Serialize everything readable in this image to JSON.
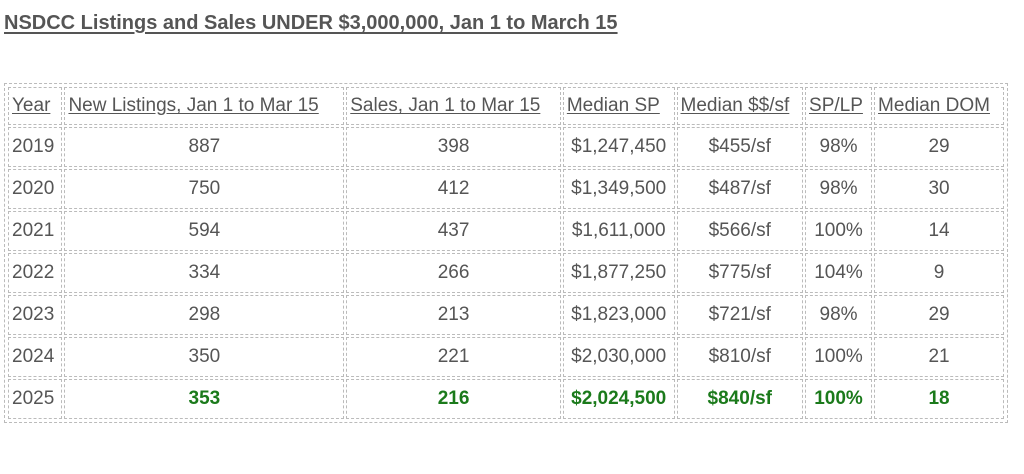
{
  "title": "NSDCC Listings and Sales UNDER $3,000,000, Jan 1 to March 15",
  "table": {
    "headers": [
      "Year",
      "New Listings, Jan 1 to Mar 15",
      "Sales, Jan 1 to Mar 15",
      "Median SP",
      "Median $$/sf",
      "SP/LP",
      "Median DOM"
    ],
    "rows": [
      [
        "2019",
        "887",
        "398",
        "$1,247,450",
        "$455/sf",
        "98%",
        "29"
      ],
      [
        "2020",
        "750",
        "412",
        "$1,349,500",
        "$487/sf",
        "98%",
        "30"
      ],
      [
        "2021",
        "594",
        "437",
        "$1,611,000",
        "$566/sf",
        "100%",
        "14"
      ],
      [
        "2022",
        "334",
        "266",
        "$1,877,250",
        "$775/sf",
        "104%",
        "9"
      ],
      [
        "2023",
        "298",
        "213",
        "$1,823,000",
        "$721/sf",
        "98%",
        "29"
      ],
      [
        "2024",
        "350",
        "221",
        "$2,030,000",
        "$810/sf",
        "100%",
        "21"
      ],
      [
        "2025",
        "353",
        "216",
        "$2,024,500",
        "$840/sf",
        "100%",
        "18"
      ]
    ]
  },
  "colors": {
    "text": "#555555",
    "highlight": "#1b7a1b",
    "border": "#bbbbbb"
  }
}
